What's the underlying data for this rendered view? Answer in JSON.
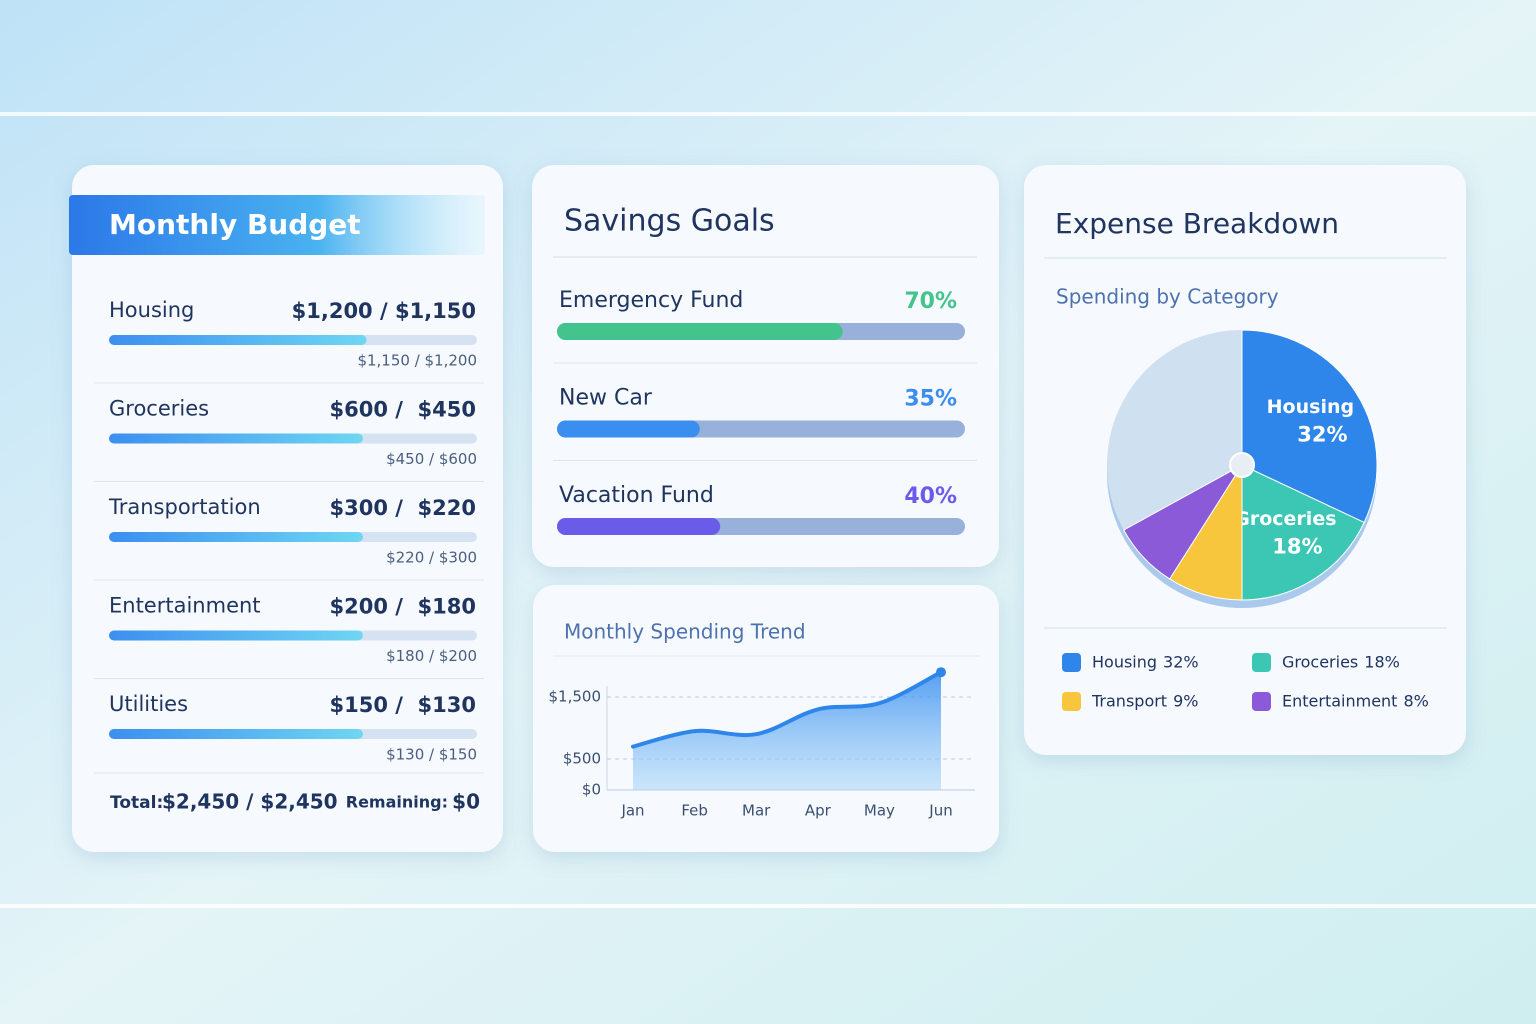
{
  "budget": {
    "title": "Monthly Budget",
    "items": [
      {
        "name": "Housing",
        "amounts": "$1,200 / $1,150",
        "detail": "$1,150 / $1,200",
        "progress": 70
      },
      {
        "name": "Groceries",
        "amounts": "$600 /  $450",
        "detail": "$450 / $600",
        "progress": 69
      },
      {
        "name": "Transportation",
        "amounts": "$300 /  $220",
        "detail": "$220 / $300",
        "progress": 69
      },
      {
        "name": "Entertainment",
        "amounts": "$200 /  $180",
        "detail": "$180 / $200",
        "progress": 69
      },
      {
        "name": "Utilities",
        "amounts": "$150 /  $130",
        "detail": "$130 / $150",
        "progress": 69
      }
    ],
    "total_label": "Total:",
    "total": "$2,450 / $2,450",
    "remaining_label": "Remaining:",
    "remaining": "$0"
  },
  "savings": {
    "title": "Savings Goals",
    "names": [
      "Emergency Fund",
      "New Car",
      "Vacation Fund"
    ],
    "values": [
      70,
      35,
      40
    ],
    "value_labels": [
      "70%",
      "35%",
      "40%"
    ],
    "colors": [
      "#43c48c",
      "#3a8ef0",
      "#6a5ce8"
    ]
  },
  "chart_data": [
    {
      "type": "area",
      "title": "Monthly Spending Trend",
      "categories": [
        "Jan",
        "Feb",
        "Mar",
        "Apr",
        "May",
        "Jun"
      ],
      "values": [
        700,
        950,
        900,
        1300,
        1400,
        1900
      ],
      "color": "#2f86ea",
      "ylim": [
        0,
        2000
      ],
      "yticks": [
        {
          "value": 0,
          "label": "$0"
        },
        {
          "value": 500,
          "label": "$500"
        },
        {
          "value": 1500,
          "label": "$1,500"
        }
      ],
      "grid": true
    },
    {
      "type": "pie",
      "title": "Expense Breakdown",
      "subtitle": "Spending by Category",
      "categories": [
        "Housing",
        "Groceries",
        "Transport",
        "Entertainment"
      ],
      "values": [
        32,
        18,
        9,
        8
      ],
      "value_labels": [
        "32%",
        "18%",
        "9%",
        "8%"
      ],
      "colors": [
        "#2f86ea",
        "#3cc6b4",
        "#f7c63c",
        "#8a5ad8"
      ]
    }
  ]
}
